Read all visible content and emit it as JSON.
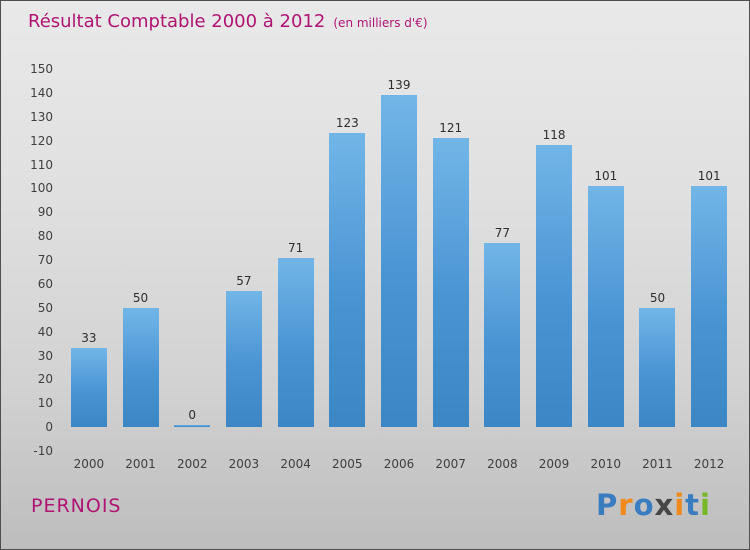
{
  "title": {
    "main": "Résultat Comptable 2000 à 2012",
    "sub": "(en milliers d'€)"
  },
  "footer": {
    "company": "PERNOIS"
  },
  "logo": {
    "name": "Proxiti",
    "letters": [
      {
        "ch": "P",
        "color": "#3a7cc0"
      },
      {
        "ch": "r",
        "color": "#f08a1d"
      },
      {
        "ch": "o",
        "color": "#3a7cc0"
      },
      {
        "ch": "x",
        "color": "#474747"
      },
      {
        "ch": "i",
        "color": "#f08a1d"
      },
      {
        "ch": "t",
        "color": "#3a7cc0"
      },
      {
        "ch": "i",
        "color": "#79b829"
      }
    ]
  },
  "colors": {
    "accent": "#b01472",
    "bar_top": "#72b6e7",
    "bar_bottom": "#3d86c6",
    "axis_text": "#3f3f3f"
  },
  "chart_data": {
    "type": "bar",
    "title": "Résultat Comptable 2000 à 2012",
    "subtitle": "(en milliers d'€)",
    "categories": [
      "2000",
      "2001",
      "2002",
      "2003",
      "2004",
      "2005",
      "2006",
      "2007",
      "2008",
      "2009",
      "2010",
      "2011",
      "2012"
    ],
    "values": [
      33,
      50,
      0,
      57,
      71,
      123,
      139,
      121,
      77,
      118,
      101,
      50,
      101
    ],
    "xlabel": "",
    "ylabel": "",
    "ylim": [
      -10,
      150
    ],
    "ytick_step": 10,
    "grid": false,
    "legend": false,
    "value_labels": true
  }
}
